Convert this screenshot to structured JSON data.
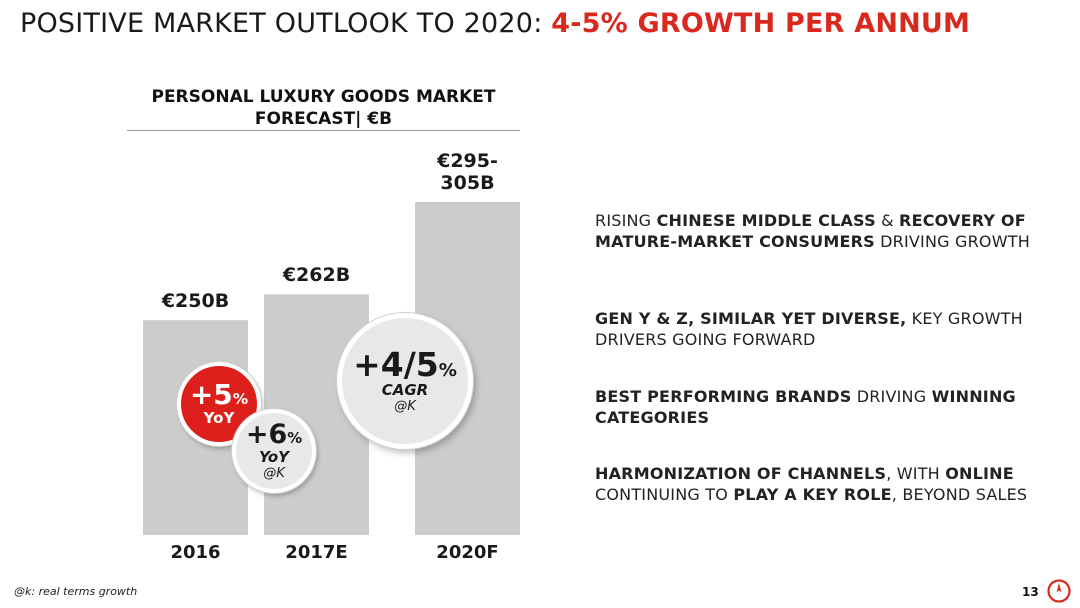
{
  "title": {
    "plain": "POSITIVE MARKET OUTLOOK TO 2020: ",
    "accent": "4-5% GROWTH PER ANNUM"
  },
  "chart_data": {
    "type": "bar",
    "title_line1": "PERSONAL LUXURY GOODS MARKET",
    "title_line2": "FORECAST| €B",
    "categories": [
      "2016",
      "2017E",
      "2020F"
    ],
    "values": [
      250,
      262,
      300
    ],
    "value_labels": [
      "€250B",
      "€262B",
      "€295-\n305B"
    ],
    "range_2020F": [
      295,
      305
    ],
    "ylim": [
      0,
      305
    ],
    "bar_color": "#cccccc",
    "grid": false
  },
  "badges": {
    "yoy_2017": {
      "main": "+5",
      "pct": "%",
      "sub": "YoY"
    },
    "yoy_2020_real": {
      "main": "+6",
      "pct": "%",
      "sub": "YoY",
      "note": "@K"
    },
    "cagr": {
      "main": "+4/5",
      "pct": "%",
      "sub": "CAGR",
      "note": "@K"
    }
  },
  "bullets": [
    {
      "segments": [
        {
          "text": "RISING ",
          "bold": false
        },
        {
          "text": "CHINESE MIDDLE CLASS",
          "bold": true
        },
        {
          "text": " & ",
          "bold": false
        },
        {
          "text": "RECOVERY OF MATURE-MARKET CONSUMERS",
          "bold": true
        },
        {
          "text": " DRIVING GROWTH",
          "bold": false
        }
      ]
    },
    {
      "segments": [
        {
          "text": "GEN Y & Z, SIMILAR YET DIVERSE,",
          "bold": true
        },
        {
          "text": " KEY GROWTH DRIVERS GOING FORWARD",
          "bold": false
        }
      ]
    },
    {
      "segments": [
        {
          "text": "BEST PERFORMING BRANDS",
          "bold": true
        },
        {
          "text": " DRIVING ",
          "bold": false
        },
        {
          "text": "WINNING CATEGORIES",
          "bold": true
        }
      ]
    },
    {
      "segments": [
        {
          "text": "HARMONIZATION OF CHANNELS",
          "bold": true
        },
        {
          "text": ", WITH ",
          "bold": false
        },
        {
          "text": "ONLINE",
          "bold": true
        },
        {
          "text": " CONTINUING TO ",
          "bold": false
        },
        {
          "text": "PLAY A KEY ROLE",
          "bold": true
        },
        {
          "text": ", BEYOND SALES",
          "bold": false
        }
      ]
    }
  ],
  "footnote": "@k: real terms growth",
  "page_number": "13",
  "colors": {
    "accent": "#d9281e",
    "bar": "#cccccc",
    "badge_grey": "#e8e8e8"
  }
}
